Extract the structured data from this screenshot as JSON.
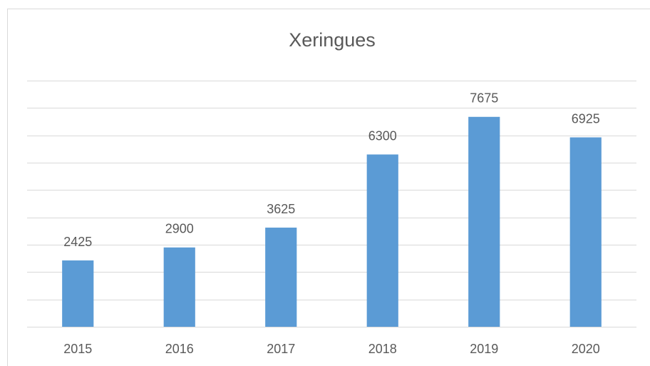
{
  "chart_data": {
    "type": "bar",
    "title": "Xeringues",
    "categories": [
      "2015",
      "2016",
      "2017",
      "2018",
      "2019",
      "2020"
    ],
    "values": [
      2425,
      2900,
      3625,
      6300,
      7675,
      6925
    ],
    "color": "#5b9bd5",
    "ylim": [
      0,
      9000
    ],
    "yticks": [
      0,
      1000,
      2000,
      3000,
      4000,
      5000,
      6000,
      7000,
      8000,
      9000
    ],
    "grid": true,
    "data_labels": true
  }
}
